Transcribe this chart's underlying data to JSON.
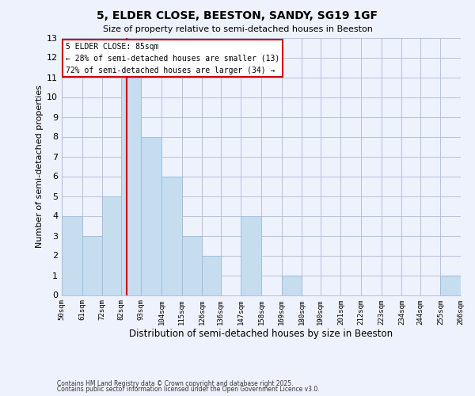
{
  "title": "5, ELDER CLOSE, BEESTON, SANDY, SG19 1GF",
  "subtitle": "Size of property relative to semi-detached houses in Beeston",
  "xlabel": "Distribution of semi-detached houses by size in Beeston",
  "ylabel": "Number of semi-detached properties",
  "bin_edges": [
    50,
    61,
    72,
    82,
    93,
    104,
    115,
    126,
    136,
    147,
    158,
    169,
    180,
    190,
    201,
    212,
    223,
    234,
    244,
    255,
    266
  ],
  "counts": [
    4,
    3,
    5,
    11,
    8,
    6,
    3,
    2,
    0,
    4,
    0,
    1,
    0,
    0,
    0,
    0,
    0,
    0,
    0,
    1
  ],
  "bar_color": "#c6ddf0",
  "bar_edgecolor": "#9bbcd8",
  "property_line_x": 85,
  "property_line_color": "#cc0000",
  "ylim": [
    0,
    13
  ],
  "yticks": [
    0,
    1,
    2,
    3,
    4,
    5,
    6,
    7,
    8,
    9,
    10,
    11,
    12,
    13
  ],
  "tick_labels": [
    "50sqm",
    "61sqm",
    "72sqm",
    "82sqm",
    "93sqm",
    "104sqm",
    "115sqm",
    "126sqm",
    "136sqm",
    "147sqm",
    "158sqm",
    "169sqm",
    "180sqm",
    "190sqm",
    "201sqm",
    "212sqm",
    "223sqm",
    "234sqm",
    "244sqm",
    "255sqm",
    "266sqm"
  ],
  "annotation_title": "5 ELDER CLOSE: 85sqm",
  "annotation_line1": "← 28% of semi-detached houses are smaller (13)",
  "annotation_line2": "72% of semi-detached houses are larger (34) →",
  "annotation_box_color": "#ffffff",
  "annotation_box_edgecolor": "#cc0000",
  "footer1": "Contains HM Land Registry data © Crown copyright and database right 2025.",
  "footer2": "Contains public sector information licensed under the Open Government Licence v3.0.",
  "background_color": "#eef2fc",
  "grid_color": "#b0b8d8"
}
